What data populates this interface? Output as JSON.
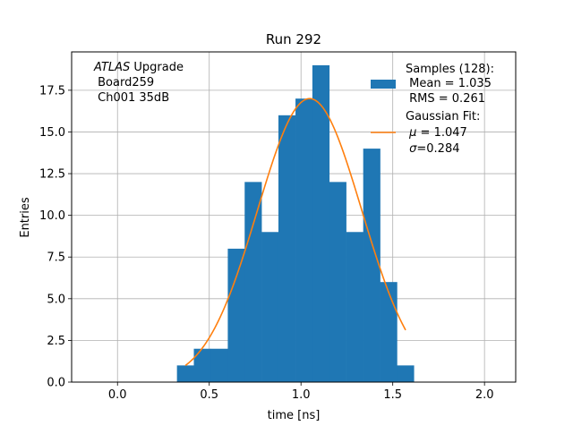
{
  "chart_data": {
    "type": "bar",
    "title": "Run 292",
    "xlabel": "time [ns]",
    "ylabel": "Entries",
    "xlim": [
      -0.25,
      2.17
    ],
    "ylim": [
      0,
      19.8
    ],
    "grid": true,
    "x_ticks": [
      0.0,
      0.5,
      1.0,
      1.5,
      2.0
    ],
    "x_tick_labels": [
      "0.0",
      "0.5",
      "1.0",
      "1.5",
      "2.0"
    ],
    "y_ticks": [
      0.0,
      2.5,
      5.0,
      7.5,
      10.0,
      12.5,
      15.0,
      17.5
    ],
    "y_tick_labels": [
      "0.0",
      "2.5",
      "5.0",
      "7.5",
      "10.0",
      "12.5",
      "15.0",
      "17.5"
    ],
    "bin_edges": [
      0.324,
      0.416,
      0.508,
      0.601,
      0.693,
      0.785,
      0.877,
      0.97,
      1.062,
      1.154,
      1.246,
      1.339,
      1.431,
      1.523,
      1.615
    ],
    "counts": [
      1,
      2,
      2,
      8,
      12,
      9,
      16,
      17,
      19,
      12,
      9,
      14,
      6,
      1
    ],
    "bar_color": "#1f77b4",
    "fit": {
      "name": "Gaussian Fit",
      "color": "#ff7f0e",
      "amplitude": 17.0,
      "mu": 1.047,
      "sigma": 0.284,
      "x_range": [
        0.37,
        1.57
      ]
    },
    "legend": {
      "placement": "top-right",
      "entries": [
        {
          "label": "Samples (128):\n Mean = 1.035\n RMS = 0.261",
          "kind": "patch",
          "color": "#1f77b4"
        },
        {
          "label": "Gaussian Fit:\n $\\mu$ = 1.047\n $\\sigma$=0.284",
          "kind": "line",
          "color": "#ff7f0e"
        }
      ]
    },
    "annotation": {
      "placement": "top-left",
      "lines": [
        "ATLAS Upgrade",
        " Board259",
        " Ch001 35dB"
      ]
    }
  },
  "text": {
    "title": "Run 292",
    "xlabel": "time [ns]",
    "ylabel": "Entries",
    "annotation_italic": "ATLAS",
    "annotation_rest": " Upgrade",
    "annotation_line2": " Board259",
    "annotation_line3": " Ch001 35dB",
    "legend_samples_1": "Samples (128):",
    "legend_samples_2": " Mean = 1.035",
    "legend_samples_3": " RMS = 0.261",
    "legend_fit_1": "Gaussian Fit:",
    "legend_fit_2_prefix": " ",
    "legend_fit_2_symbol": "μ",
    "legend_fit_2_value": " = 1.047",
    "legend_fit_3_prefix": " ",
    "legend_fit_3_symbol": "σ",
    "legend_fit_3_value": "=0.284"
  }
}
